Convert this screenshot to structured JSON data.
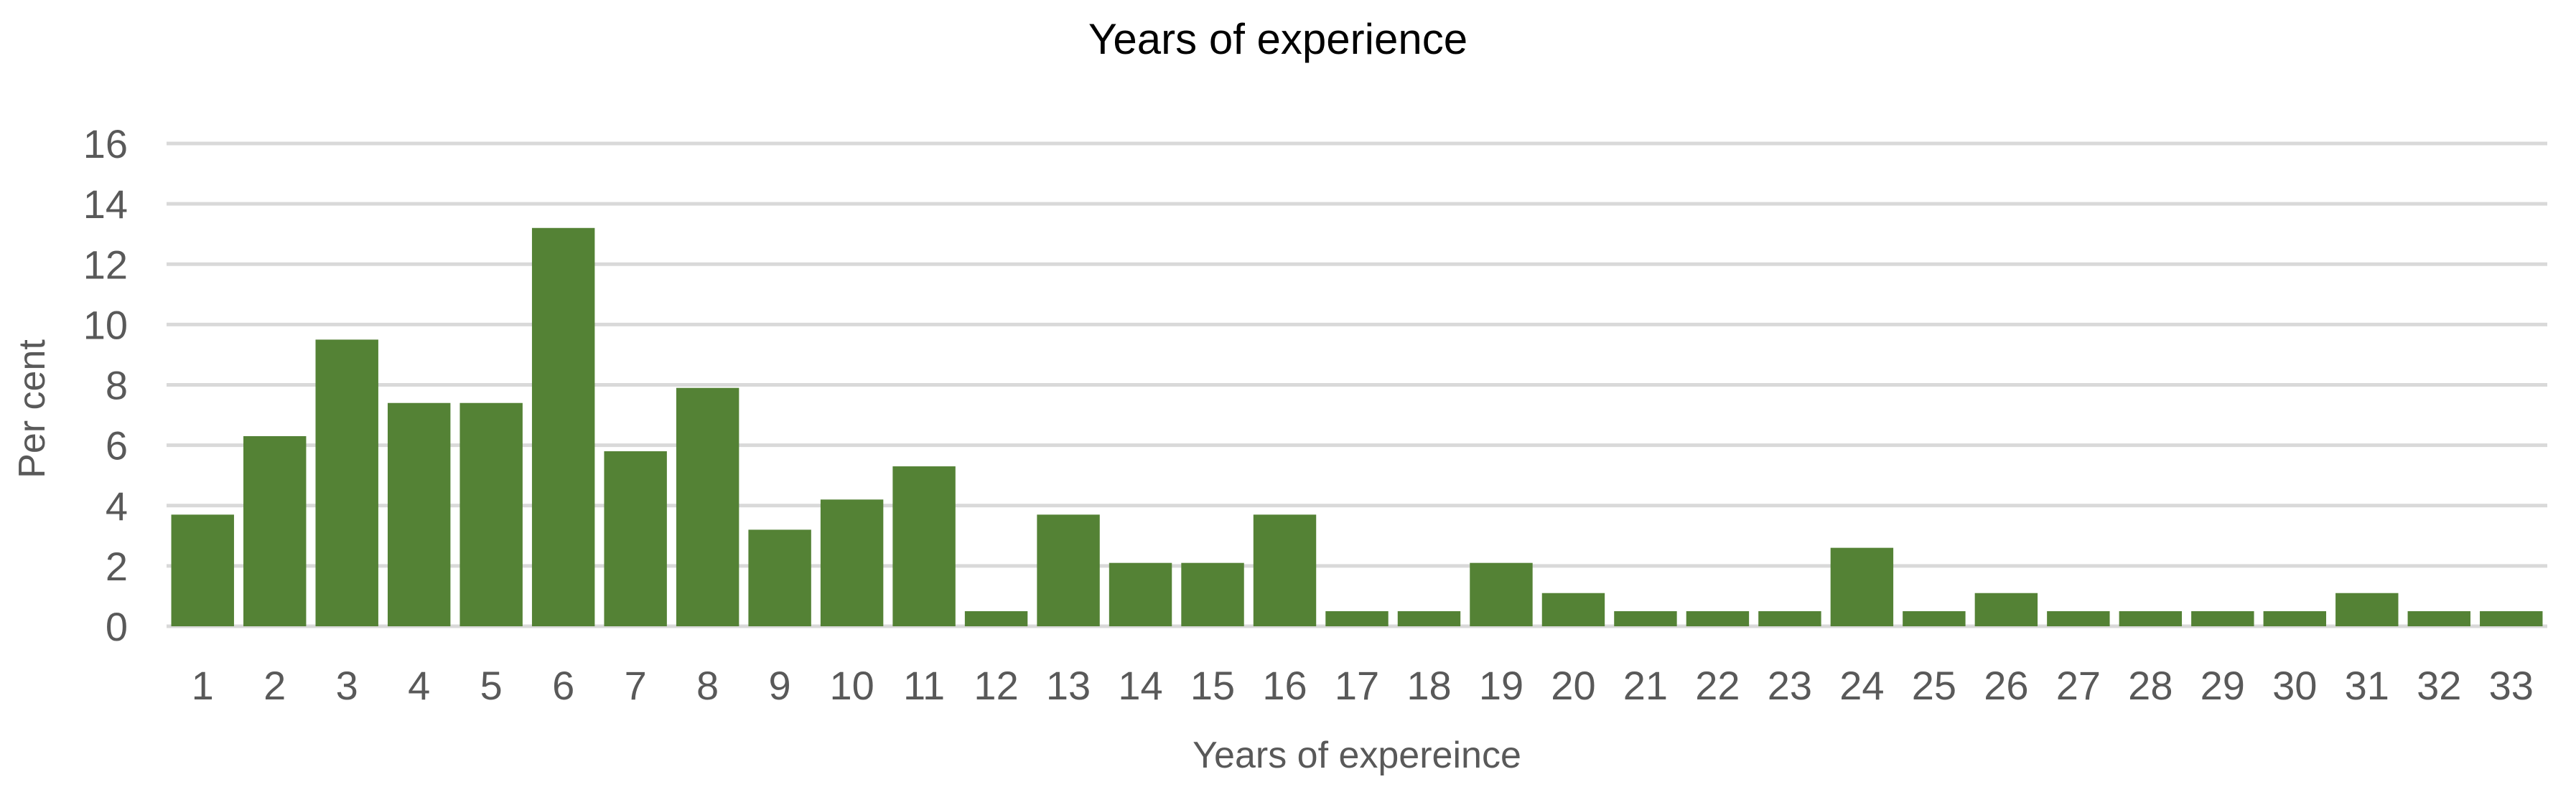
{
  "chart_data": {
    "type": "bar",
    "title": "Years of experience",
    "xlabel": "Years of expereince",
    "ylabel": "Per cent",
    "ylim": [
      0,
      16
    ],
    "yticks": [
      0,
      2,
      4,
      6,
      8,
      10,
      12,
      14,
      16
    ],
    "grid": true,
    "legend": "none",
    "bar_color": "#548235",
    "grid_color": "#d9d9d9",
    "categories": [
      "1",
      "2",
      "3",
      "4",
      "5",
      "6",
      "7",
      "8",
      "9",
      "10",
      "11",
      "12",
      "13",
      "14",
      "15",
      "16",
      "17",
      "18",
      "19",
      "20",
      "21",
      "22",
      "23",
      "24",
      "25",
      "26",
      "27",
      "28",
      "29",
      "30",
      "31",
      "32",
      "33"
    ],
    "values": [
      3.7,
      6.3,
      9.5,
      7.4,
      7.4,
      13.2,
      5.8,
      7.9,
      3.2,
      4.2,
      5.3,
      0.5,
      3.7,
      2.1,
      2.1,
      3.7,
      0.5,
      0.5,
      2.1,
      1.1,
      0.5,
      0.5,
      0.5,
      2.6,
      0.5,
      1.1,
      0.5,
      0.5,
      0.5,
      0.5,
      1.1,
      0.5,
      0.5
    ]
  }
}
